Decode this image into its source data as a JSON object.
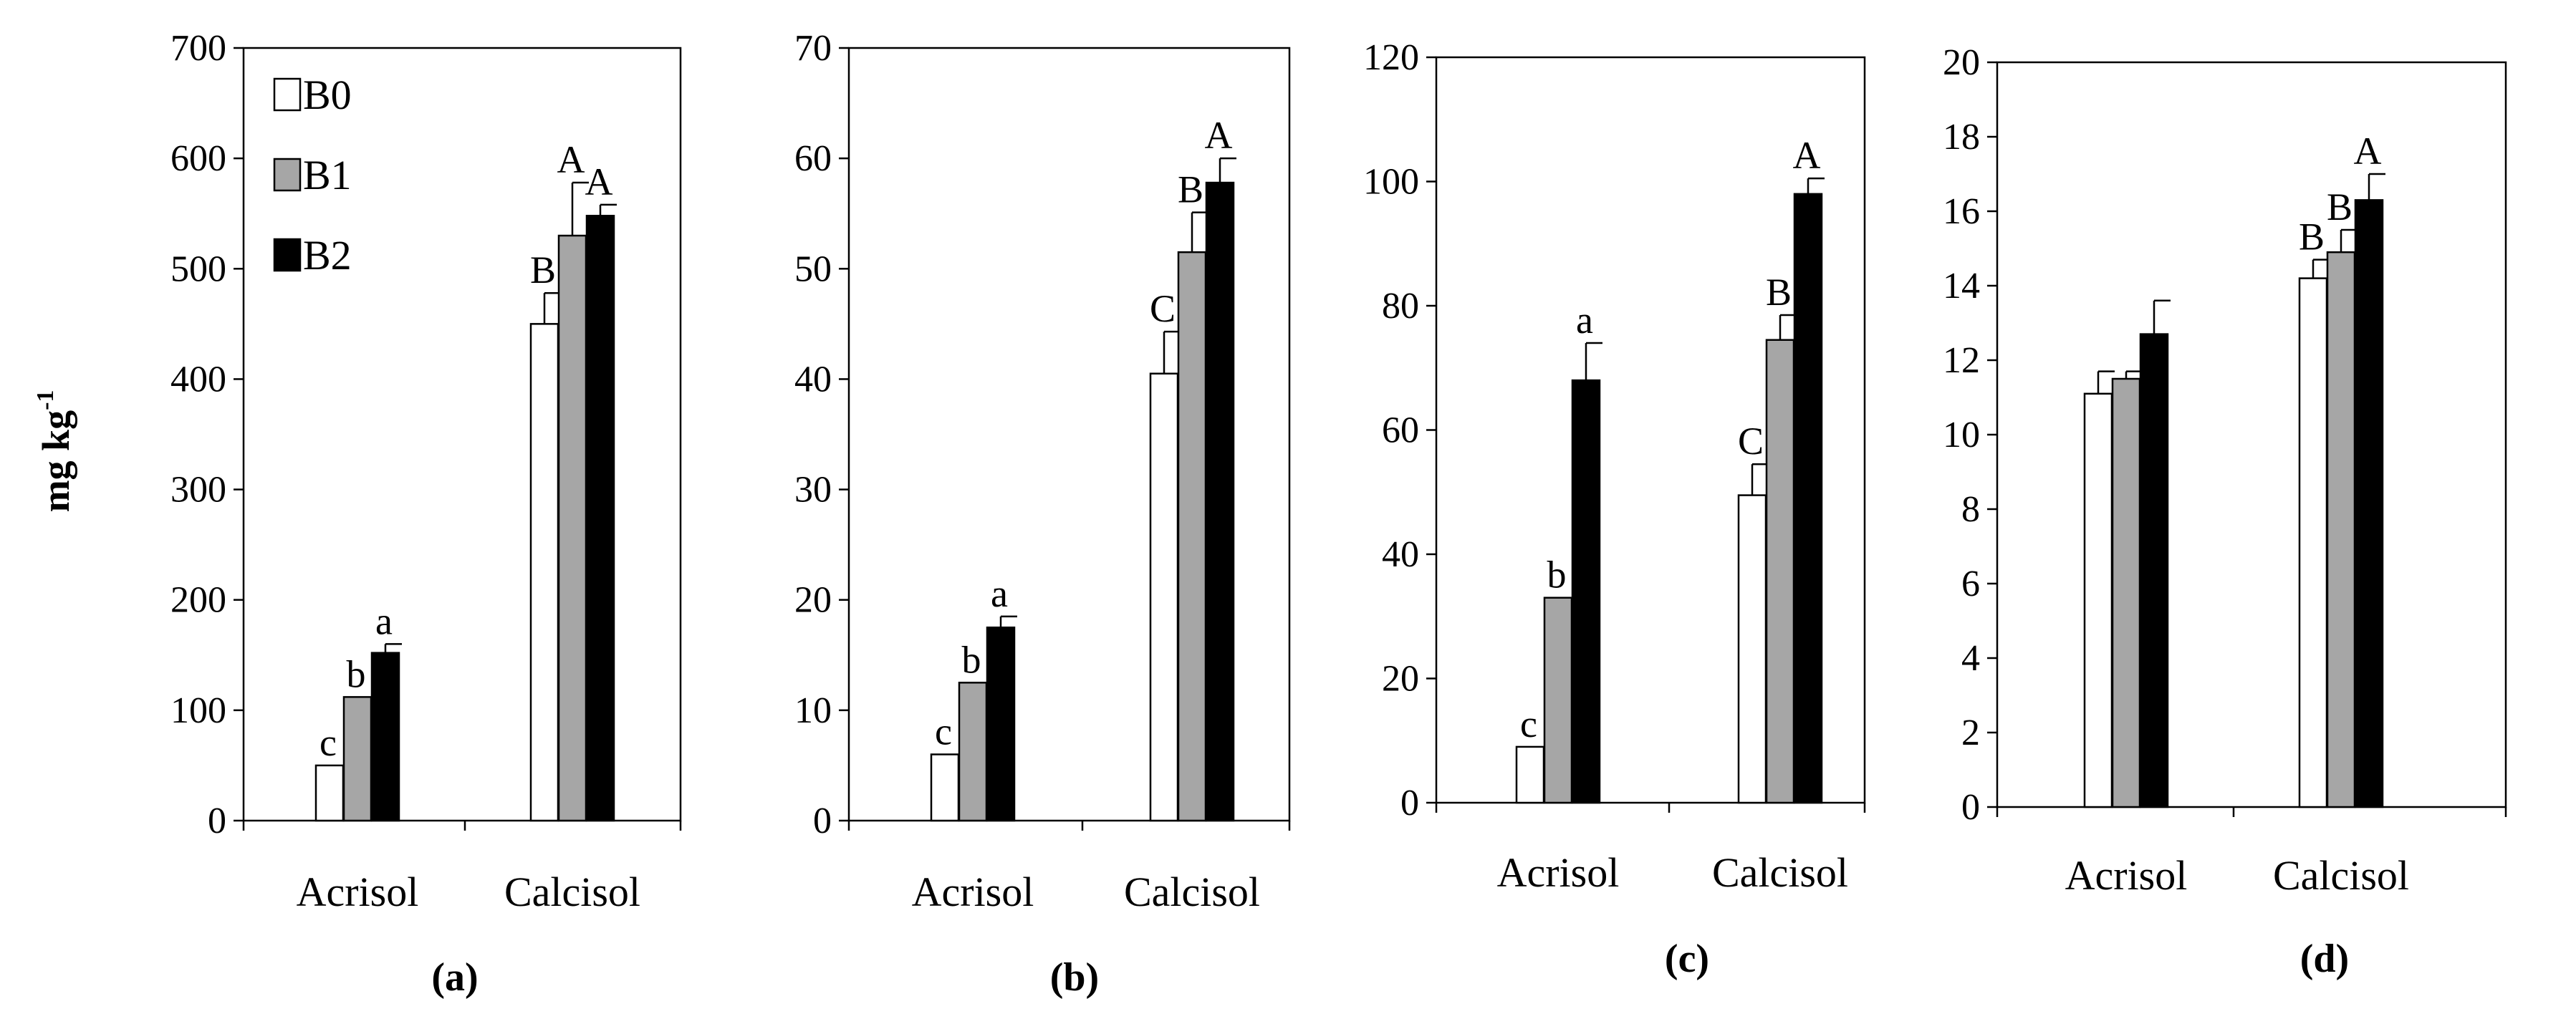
{
  "figure": {
    "ylabel": "mg kg",
    "ylabel_sup": "-1",
    "legend": [
      {
        "name": "B0",
        "color": "#ffffff"
      },
      {
        "name": "B1",
        "color": "#a6a6a6"
      },
      {
        "name": "B2",
        "color": "#000000"
      }
    ]
  },
  "chart_data": [
    {
      "type": "bar",
      "caption": "(a)",
      "categories": [
        "Acrisol",
        "Calcisol"
      ],
      "ylim": [
        0,
        700
      ],
      "yticks": [
        0,
        100,
        200,
        300,
        400,
        500,
        600,
        700
      ],
      "series": [
        {
          "name": "B0",
          "values": [
            50,
            450
          ],
          "errors": [
            0,
            28
          ],
          "letters": [
            "c",
            "B"
          ]
        },
        {
          "name": "B1",
          "values": [
            112,
            530
          ],
          "errors": [
            0,
            48
          ],
          "letters": [
            "b",
            "A"
          ]
        },
        {
          "name": "B2",
          "values": [
            152,
            548
          ],
          "errors": [
            8,
            10
          ],
          "letters": [
            "a",
            "A"
          ]
        }
      ]
    },
    {
      "type": "bar",
      "caption": "(b)",
      "categories": [
        "Acrisol",
        "Calcisol"
      ],
      "ylim": [
        0,
        70
      ],
      "yticks": [
        0,
        10,
        20,
        30,
        40,
        50,
        60,
        70
      ],
      "series": [
        {
          "name": "B0",
          "values": [
            6,
            40.5
          ],
          "errors": [
            0,
            3.8
          ],
          "letters": [
            "c",
            "C"
          ]
        },
        {
          "name": "B1",
          "values": [
            12.5,
            51.5
          ],
          "errors": [
            0,
            3.6
          ],
          "letters": [
            "b",
            "B"
          ]
        },
        {
          "name": "B2",
          "values": [
            17.5,
            57.8
          ],
          "errors": [
            1,
            2.2
          ],
          "letters": [
            "a",
            "A"
          ]
        }
      ]
    },
    {
      "type": "bar",
      "caption": "(c)",
      "categories": [
        "Acrisol",
        "Calcisol"
      ],
      "ylim": [
        0,
        120
      ],
      "yticks": [
        0,
        20,
        40,
        60,
        80,
        100,
        120
      ],
      "series": [
        {
          "name": "B0",
          "values": [
            9,
            49.5
          ],
          "errors": [
            0,
            5
          ],
          "letters": [
            "c",
            "C"
          ]
        },
        {
          "name": "B1",
          "values": [
            33,
            74.5
          ],
          "errors": [
            0,
            4
          ],
          "letters": [
            "b",
            "B"
          ]
        },
        {
          "name": "B2",
          "values": [
            68,
            98
          ],
          "errors": [
            6,
            2.5
          ],
          "letters": [
            "a",
            "A"
          ]
        }
      ]
    },
    {
      "type": "bar",
      "caption": "(d)",
      "categories": [
        "Acrisol",
        "Calcisol"
      ],
      "ylim": [
        0,
        20
      ],
      "yticks": [
        0,
        2,
        4,
        6,
        8,
        10,
        12,
        14,
        16,
        18,
        20
      ],
      "series": [
        {
          "name": "B0",
          "values": [
            11.1,
            14.2
          ],
          "errors": [
            0.6,
            0.5
          ],
          "letters": [
            "",
            "B"
          ]
        },
        {
          "name": "B1",
          "values": [
            11.5,
            14.9
          ],
          "errors": [
            0.2,
            0.6
          ],
          "letters": [
            "",
            "B"
          ]
        },
        {
          "name": "B2",
          "values": [
            12.7,
            16.3
          ],
          "errors": [
            0.9,
            0.7
          ],
          "letters": [
            "",
            "A"
          ]
        }
      ]
    }
  ]
}
